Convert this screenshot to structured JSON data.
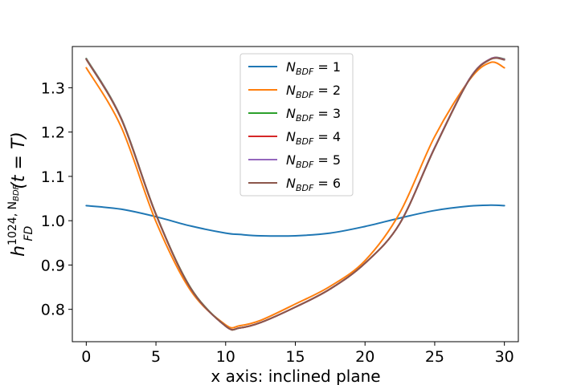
{
  "chart_data": {
    "type": "line",
    "title": "",
    "xlabel": "x axis: inclined plane",
    "ylabel_main": "h",
    "ylabel_sup": "1024, N",
    "ylabel_sup_sub": "BDF",
    "ylabel_sub": "FD",
    "ylabel_tail": "(t = T)",
    "xlim": [
      -1.0,
      31.0
    ],
    "ylim": [
      0.727,
      1.393
    ],
    "xticks": [
      0,
      5,
      10,
      15,
      20,
      25,
      30
    ],
    "yticks": [
      0.8,
      0.9,
      1.0,
      1.1,
      1.2,
      1.3
    ],
    "xtick_labels": [
      "0",
      "5",
      "10",
      "15",
      "20",
      "25",
      "30"
    ],
    "ytick_labels": [
      "0.8",
      "0.9",
      "1.0",
      "1.1",
      "1.2",
      "1.3"
    ],
    "legend_position": "upper-center",
    "grid": false,
    "x": [
      0,
      2.5,
      5,
      7.5,
      10,
      11,
      12.5,
      15,
      17.5,
      20,
      22.5,
      25,
      27.5,
      29,
      30
    ],
    "series": [
      {
        "name": "1",
        "color": "#1f77b4",
        "values": [
          1.034,
          1.026,
          1.009,
          0.988,
          0.972,
          0.969,
          0.966,
          0.966,
          0.972,
          0.987,
          1.006,
          1.023,
          1.033,
          1.035,
          1.034
        ]
      },
      {
        "name": "2",
        "color": "#ff7f0e",
        "values": [
          1.345,
          1.212,
          0.998,
          0.842,
          0.765,
          0.763,
          0.775,
          0.812,
          0.852,
          0.91,
          1.018,
          1.19,
          1.318,
          1.357,
          1.345
        ]
      },
      {
        "name": "3",
        "color": "#2ca02c",
        "values": [
          1.366,
          1.232,
          1.015,
          0.848,
          0.762,
          0.758,
          0.77,
          0.805,
          0.846,
          0.904,
          0.994,
          1.165,
          1.32,
          1.365,
          1.365
        ]
      },
      {
        "name": "4",
        "color": "#d62728",
        "values": [
          1.365,
          1.231,
          1.014,
          0.847,
          0.762,
          0.758,
          0.77,
          0.805,
          0.846,
          0.904,
          0.994,
          1.165,
          1.32,
          1.365,
          1.364
        ]
      },
      {
        "name": "5",
        "color": "#9467bd",
        "values": [
          1.365,
          1.231,
          1.014,
          0.847,
          0.762,
          0.758,
          0.77,
          0.805,
          0.846,
          0.904,
          0.994,
          1.165,
          1.32,
          1.365,
          1.364
        ]
      },
      {
        "name": "6",
        "color": "#8c564b",
        "values": [
          1.364,
          1.23,
          1.014,
          0.847,
          0.762,
          0.758,
          0.77,
          0.805,
          0.846,
          0.904,
          0.994,
          1.164,
          1.319,
          1.364,
          1.363
        ]
      }
    ],
    "legend_label_main": "N",
    "legend_label_sub": "BDF",
    "legend_label_eq": " = "
  }
}
